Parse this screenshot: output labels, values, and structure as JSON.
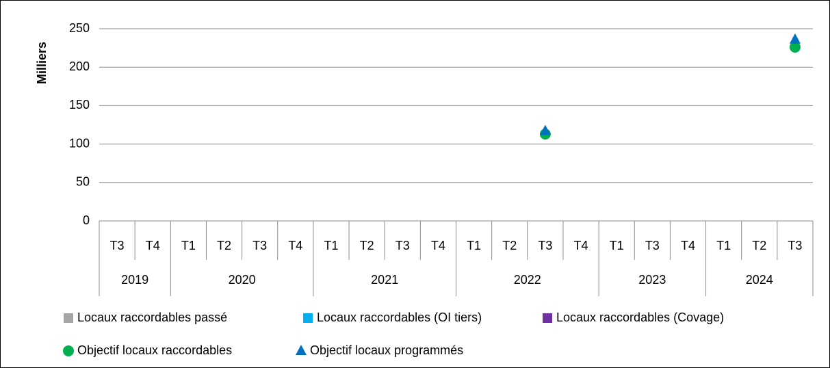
{
  "chart_data": {
    "type": "combo",
    "y_label": "Milliers",
    "ylim": [
      0,
      250
    ],
    "yticks": [
      0,
      50,
      100,
      150,
      200,
      250
    ],
    "grid": true,
    "groups": [
      {
        "label": "2019",
        "categories": [
          "T3",
          "T4"
        ]
      },
      {
        "label": "2020",
        "categories": [
          "T1",
          "T2",
          "T3",
          "T4"
        ]
      },
      {
        "label": "2021",
        "categories": [
          "T1",
          "T2",
          "T3",
          "T4"
        ]
      },
      {
        "label": "2022",
        "categories": [
          "T1",
          "T2",
          "T3",
          "T4"
        ]
      },
      {
        "label": "2023",
        "categories": [
          "T1",
          "T3",
          "T4"
        ]
      },
      {
        "label": "2024",
        "categories": [
          "T1",
          "T2",
          "T3"
        ]
      }
    ],
    "series": [
      {
        "name": "Locaux raccordables passé",
        "color": "#a5a5a5",
        "marker": "square",
        "values": [
          null,
          null,
          null,
          null,
          null,
          null,
          null,
          null,
          null,
          null,
          null,
          null,
          null,
          null,
          null,
          null,
          null,
          null,
          null,
          null
        ]
      },
      {
        "name": "Locaux raccordables (OI tiers)",
        "color": "#00b0f0",
        "marker": "square",
        "values": [
          null,
          null,
          null,
          null,
          null,
          null,
          null,
          null,
          null,
          null,
          null,
          null,
          null,
          null,
          null,
          null,
          null,
          null,
          null,
          null
        ]
      },
      {
        "name": "Locaux raccordables (Covage)",
        "color": "#7030a0",
        "marker": "square",
        "values": [
          null,
          null,
          null,
          null,
          null,
          null,
          null,
          null,
          null,
          null,
          null,
          null,
          null,
          null,
          null,
          null,
          null,
          null,
          null,
          null
        ]
      },
      {
        "name": "Objectif locaux raccordables",
        "color": "#00b050",
        "marker": "circle",
        "values": [
          null,
          null,
          null,
          null,
          null,
          null,
          null,
          null,
          null,
          null,
          null,
          null,
          113,
          null,
          null,
          null,
          null,
          null,
          null,
          226
        ]
      },
      {
        "name": "Objectif locaux programmés",
        "color": "#0070c0",
        "marker": "triangle",
        "values": [
          null,
          null,
          null,
          null,
          null,
          null,
          null,
          null,
          null,
          null,
          null,
          null,
          117,
          null,
          null,
          null,
          null,
          null,
          null,
          236
        ]
      }
    ]
  }
}
